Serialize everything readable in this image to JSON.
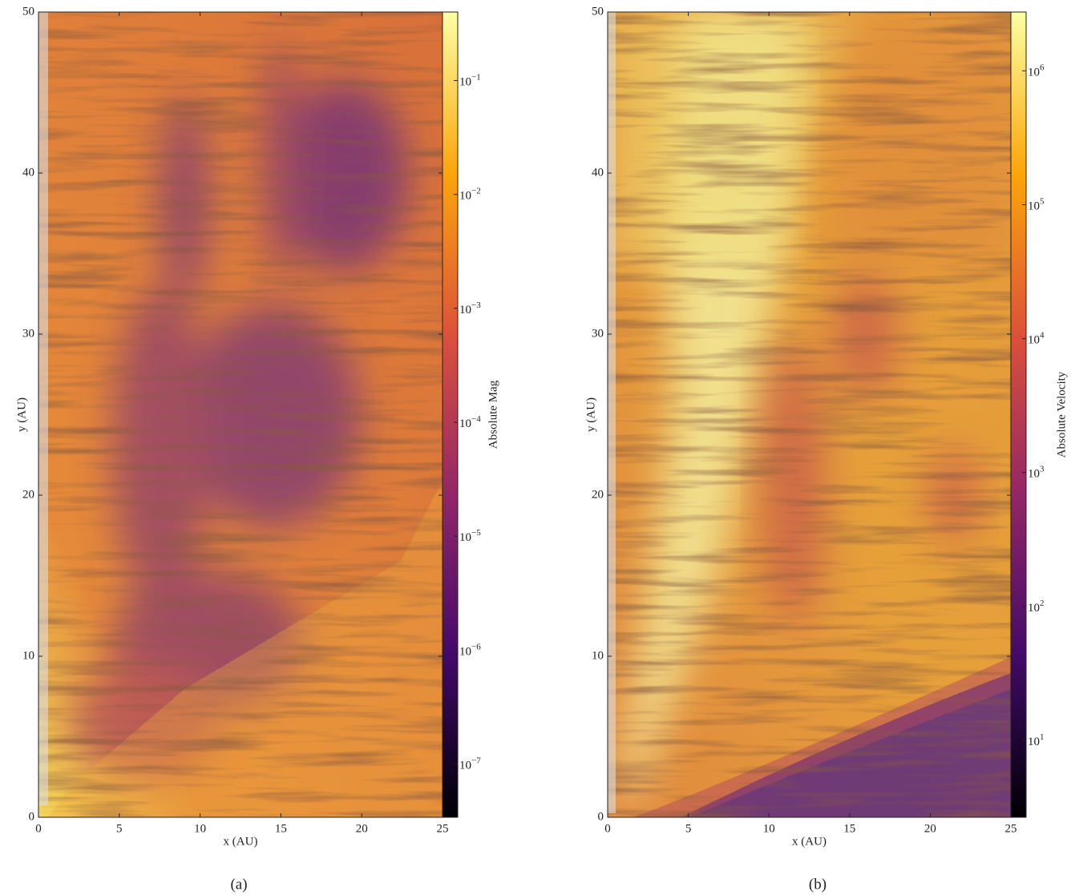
{
  "chart_data": [
    {
      "type": "heatmap",
      "caption": "(a)",
      "xlabel": "x  (AU)",
      "ylabel": "y  (AU)",
      "xlim": [
        0,
        25
      ],
      "ylim": [
        0,
        50
      ],
      "xticks": [
        0,
        5,
        10,
        15,
        20,
        25
      ],
      "yticks": [
        0,
        10,
        20,
        30,
        40,
        50
      ],
      "colormap": "inferno",
      "colorbar": {
        "label": "Absolute Mag",
        "scale": "log",
        "lim": [
          3.4e-08,
          0.4
        ],
        "ticks": [
          {
            "value": 1e-07,
            "label": "10",
            "exponent": "−7"
          },
          {
            "value": 1e-06,
            "label": "10",
            "exponent": "−6"
          },
          {
            "value": 1e-05,
            "label": "10",
            "exponent": "−5"
          },
          {
            "value": 0.0001,
            "label": "10",
            "exponent": "−4"
          },
          {
            "value": 0.001,
            "label": "10",
            "exponent": "−3"
          },
          {
            "value": 0.01,
            "label": "10",
            "exponent": "−2"
          },
          {
            "value": 0.1,
            "label": "10",
            "exponent": "−1"
          }
        ]
      }
    },
    {
      "type": "heatmap",
      "caption": "(b)",
      "xlabel": "x  (AU)",
      "ylabel": "y  (AU)",
      "xlim": [
        0,
        25
      ],
      "ylim": [
        0,
        50
      ],
      "xticks": [
        0,
        5,
        10,
        15,
        20,
        25
      ],
      "yticks": [
        0,
        10,
        20,
        30,
        40,
        50
      ],
      "colormap": "inferno",
      "colorbar": {
        "label": "Absolute Velocity",
        "scale": "log",
        "lim": [
          2.66,
          2750000
        ],
        "ticks": [
          {
            "value": 10,
            "label": "10",
            "exponent": "1"
          },
          {
            "value": 100,
            "label": "10",
            "exponent": "2"
          },
          {
            "value": 1000,
            "label": "10",
            "exponent": "3"
          },
          {
            "value": 10000,
            "label": "10",
            "exponent": "4"
          },
          {
            "value": 100000,
            "label": "10",
            "exponent": "5"
          },
          {
            "value": 1000000,
            "label": "10",
            "exponent": "6"
          }
        ]
      }
    }
  ]
}
